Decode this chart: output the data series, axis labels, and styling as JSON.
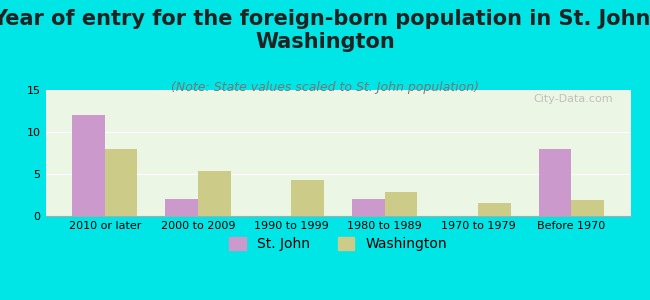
{
  "title": "Year of entry for the foreign-born population in St. John,\nWashington",
  "subtitle": "(Note: State values scaled to St. John population)",
  "categories": [
    "2010 or later",
    "2000 to 2009",
    "1990 to 1999",
    "1980 to 1989",
    "1970 to 1979",
    "Before 1970"
  ],
  "st_john_values": [
    12,
    2,
    0,
    2,
    0,
    8
  ],
  "washington_values": [
    8,
    5.3,
    4.3,
    2.8,
    1.5,
    1.9
  ],
  "st_john_color": "#cc99cc",
  "washington_color": "#cccc88",
  "background_color": "#00e5e5",
  "plot_bg_start": "#ffffff",
  "plot_bg_end": "#e8f5e0",
  "ylim": [
    0,
    15
  ],
  "yticks": [
    0,
    5,
    10,
    15
  ],
  "bar_width": 0.35,
  "title_fontsize": 15,
  "subtitle_fontsize": 9,
  "tick_fontsize": 8,
  "legend_fontsize": 10,
  "watermark": "City-Data.com"
}
